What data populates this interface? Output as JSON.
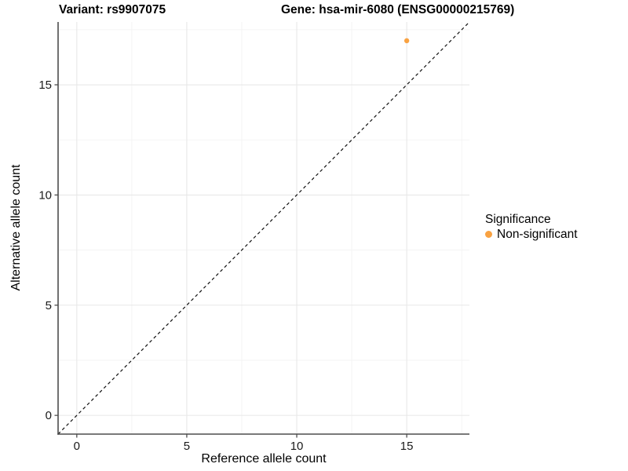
{
  "titles": {
    "variant": "Variant: rs9907075",
    "gene": "Gene: hsa-mir-6080 (ENSG00000215769)"
  },
  "chart_data": {
    "type": "scatter",
    "xlabel": "Reference allele count",
    "ylabel": "Alternative allele count",
    "xlim": [
      -0.85,
      17.85
    ],
    "ylim": [
      -0.85,
      17.85
    ],
    "x_major_ticks": [
      0,
      5,
      10,
      15
    ],
    "y_major_ticks": [
      0,
      5,
      10,
      15
    ],
    "x_minor_ticks": [
      2.5,
      7.5,
      12.5,
      17.5
    ],
    "y_minor_ticks": [
      2.5,
      7.5,
      12.5,
      17.5
    ],
    "x_tick_labels": [
      "0",
      "5",
      "10",
      "15"
    ],
    "y_tick_labels": [
      "0",
      "5",
      "10",
      "15"
    ],
    "grid": true,
    "identity_line": {
      "style": "dashed",
      "from": [
        -0.85,
        -0.85
      ],
      "to": [
        17.85,
        17.85
      ],
      "color": "#111111"
    },
    "series": [
      {
        "name": "Non-significant",
        "color": "#F9A242",
        "points": [
          {
            "x": 15,
            "y": 17
          }
        ]
      }
    ],
    "legend": {
      "title": "Significance",
      "position": "right",
      "items": [
        {
          "label": "Non-significant",
          "color": "#F9A242"
        }
      ]
    }
  },
  "colors": {
    "grid_major": "#E8E8E8",
    "grid_minor": "#F3F3F3",
    "axis_line": "#4D4D4D",
    "tick_text": "#1A1A1A",
    "point": "#F9A242"
  }
}
